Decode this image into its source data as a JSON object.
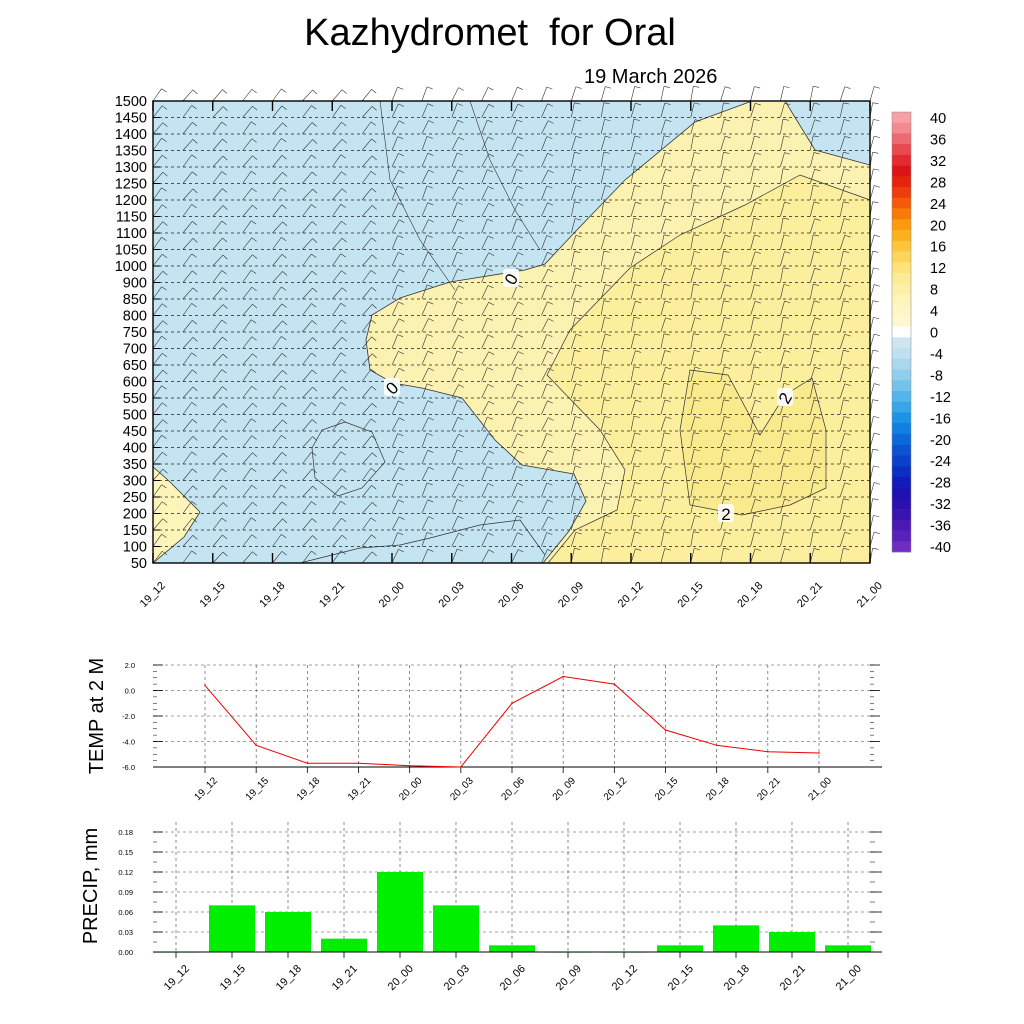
{
  "chart_data": [
    {
      "type": "heatmap",
      "title": "Kazhydromet  for Oral",
      "subtitle": "19 March 2026",
      "xlabel": "",
      "ylabel": "",
      "x_ticks": [
        "19_12",
        "19_15",
        "19_18",
        "19_21",
        "20_00",
        "20_03",
        "20_06",
        "20_09",
        "20_12",
        "20_15",
        "20_18",
        "20_21",
        "21_00"
      ],
      "y_ticks": [
        1500,
        1450,
        1400,
        1350,
        1300,
        1250,
        1200,
        1150,
        1100,
        1050,
        1000,
        900,
        850,
        800,
        750,
        700,
        650,
        600,
        550,
        500,
        450,
        400,
        350,
        300,
        250,
        200,
        150,
        100,
        50
      ],
      "colorbar_ticks": [
        "40",
        "36",
        "32",
        "28",
        "24",
        "20",
        "16",
        "12",
        "8",
        "4",
        "0",
        "-4",
        "-8",
        "-12",
        "-16",
        "-20",
        "-24",
        "-28",
        "-32",
        "-36",
        "-40"
      ],
      "contour_labels": [
        "0",
        "0",
        "2",
        "2"
      ],
      "grid": true,
      "legend": "right"
    },
    {
      "type": "line",
      "ylabel": "TEMP at 2 M",
      "categories": [
        "19_12",
        "19_15",
        "19_18",
        "19_21",
        "20_00",
        "20_03",
        "20_06",
        "20_09",
        "20_12",
        "20_15",
        "20_18",
        "20_21",
        "21_00"
      ],
      "values": [
        0.4,
        -4.3,
        -5.7,
        -5.7,
        -5.9,
        -6.0,
        -1.0,
        1.1,
        0.5,
        -3.1,
        -4.3,
        -4.8,
        -4.9
      ],
      "y_tick_labels": [
        "2.0",
        "0.0",
        "-2.0",
        "-4.0",
        "-6.0"
      ],
      "ylim": [
        -6,
        2
      ],
      "color": "#ee0000",
      "grid": true
    },
    {
      "type": "bar",
      "ylabel": "PRECIP, mm",
      "categories": [
        "19_12",
        "19_15",
        "19_18",
        "19_21",
        "20_00",
        "20_03",
        "20_06",
        "20_09",
        "20_12",
        "20_15",
        "20_18",
        "20_21",
        "21_00"
      ],
      "values": [
        0.0,
        0.07,
        0.06,
        0.02,
        0.12,
        0.07,
        0.01,
        0.0,
        0.0,
        0.01,
        0.04,
        0.03,
        0.01
      ],
      "y_tick_labels": [
        "0.18",
        "0.15",
        "0.12",
        "0.09",
        "0.06",
        "0.03",
        "0.00"
      ],
      "ylim": [
        0,
        0.195
      ],
      "color": "#00ee00",
      "grid": true
    }
  ]
}
